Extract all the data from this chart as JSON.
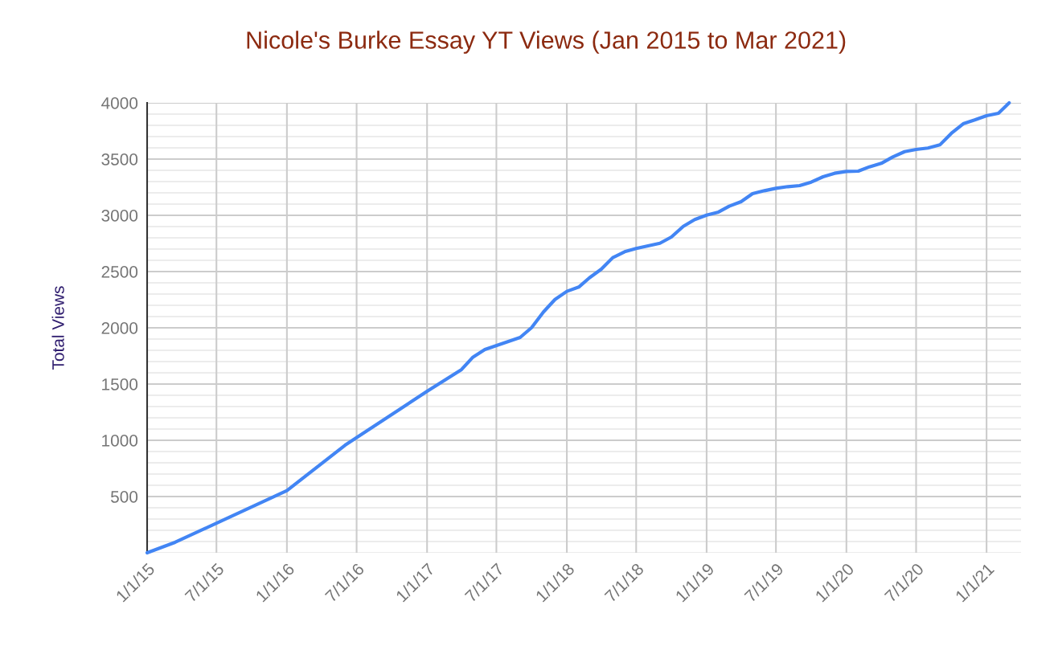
{
  "chart_data": {
    "type": "line",
    "title": "Nicole's Burke Essay YT Views (Jan 2015 to Mar 2021)",
    "ylabel": "Total Views",
    "x": [
      "2015-01-01",
      "2015-03-15",
      "2016-01-01",
      "2016-06-01",
      "2017-01-01",
      "2017-04-01",
      "2017-05-01",
      "2017-06-01",
      "2017-09-01",
      "2017-10-01",
      "2017-11-01",
      "2017-12-01",
      "2018-01-01",
      "2018-02-01",
      "2018-03-01",
      "2018-04-01",
      "2018-05-01",
      "2018-06-01",
      "2018-07-01",
      "2018-09-01",
      "2018-10-01",
      "2018-11-01",
      "2018-12-01",
      "2019-01-01",
      "2019-02-01",
      "2019-03-01",
      "2019-04-01",
      "2019-05-01",
      "2019-06-01",
      "2019-07-01",
      "2019-08-01",
      "2019-09-01",
      "2019-10-01",
      "2019-11-01",
      "2019-12-01",
      "2020-01-01",
      "2020-02-01",
      "2020-03-01",
      "2020-04-01",
      "2020-05-01",
      "2020-06-01",
      "2020-07-01",
      "2020-08-01",
      "2020-09-01",
      "2020-10-01",
      "2020-11-01",
      "2020-12-01",
      "2021-01-01",
      "2021-02-01",
      "2021-03-01"
    ],
    "series": [
      {
        "color": "#4285f4",
        "values": [
          0,
          93,
          552,
          957,
          1435,
          1629,
          1740,
          1807,
          1914,
          2002,
          2141,
          2252,
          2324,
          2362,
          2445,
          2521,
          2624,
          2676,
          2705,
          2752,
          2807,
          2902,
          2962,
          3002,
          3029,
          3081,
          3121,
          3193,
          3219,
          3240,
          3255,
          3264,
          3295,
          3343,
          3374,
          3390,
          3393,
          3431,
          3462,
          3519,
          3566,
          3586,
          3598,
          3626,
          3729,
          3814,
          3848,
          3886,
          3907,
          4000
        ]
      }
    ],
    "xlim": [
      "2015-01-01",
      "2021-04-01"
    ],
    "xticks": [
      {
        "value": "2015-01-01",
        "label": "1/1/15"
      },
      {
        "value": "2015-07-01",
        "label": "7/1/15"
      },
      {
        "value": "2016-01-01",
        "label": "1/1/16"
      },
      {
        "value": "2016-07-01",
        "label": "7/1/16"
      },
      {
        "value": "2017-01-01",
        "label": "1/1/17"
      },
      {
        "value": "2017-07-01",
        "label": "7/1/17"
      },
      {
        "value": "2018-01-01",
        "label": "1/1/18"
      },
      {
        "value": "2018-07-01",
        "label": "7/1/18"
      },
      {
        "value": "2019-01-01",
        "label": "1/1/19"
      },
      {
        "value": "2019-07-01",
        "label": "7/1/19"
      },
      {
        "value": "2020-01-01",
        "label": "1/1/20"
      },
      {
        "value": "2020-07-01",
        "label": "7/1/20"
      },
      {
        "value": "2021-01-01",
        "label": "1/1/21"
      }
    ],
    "ylim": [
      0,
      4000
    ],
    "yticks": [
      {
        "value": 0,
        "label": null
      },
      {
        "value": 100,
        "label": null
      },
      {
        "value": 200,
        "label": null
      },
      {
        "value": 300,
        "label": null
      },
      {
        "value": 400,
        "label": null
      },
      500,
      {
        "value": 600,
        "label": null
      },
      {
        "value": 700,
        "label": null
      },
      {
        "value": 800,
        "label": null
      },
      {
        "value": 900,
        "label": null
      },
      1000,
      {
        "value": 1100,
        "label": null
      },
      {
        "value": 1200,
        "label": null
      },
      {
        "value": 1300,
        "label": null
      },
      {
        "value": 1400,
        "label": null
      },
      1500,
      {
        "value": 1600,
        "label": null
      },
      {
        "value": 1700,
        "label": null
      },
      {
        "value": 1800,
        "label": null
      },
      {
        "value": 1900,
        "label": null
      },
      2000,
      {
        "value": 2100,
        "label": null
      },
      {
        "value": 2200,
        "label": null
      },
      {
        "value": 2300,
        "label": null
      },
      {
        "value": 2400,
        "label": null
      },
      2500,
      {
        "value": 2600,
        "label": null
      },
      {
        "value": 2700,
        "label": null
      },
      {
        "value": 2800,
        "label": null
      },
      {
        "value": 2900,
        "label": null
      },
      3000,
      {
        "value": 3100,
        "label": null
      },
      {
        "value": 3200,
        "label": null
      },
      {
        "value": 3300,
        "label": null
      },
      {
        "value": 3400,
        "label": null
      },
      3500,
      {
        "value": 3600,
        "label": null
      },
      {
        "value": 3700,
        "label": null
      },
      {
        "value": 3800,
        "label": null
      },
      {
        "value": 3900,
        "label": null
      },
      4000
    ],
    "grid": true,
    "legend": false
  }
}
